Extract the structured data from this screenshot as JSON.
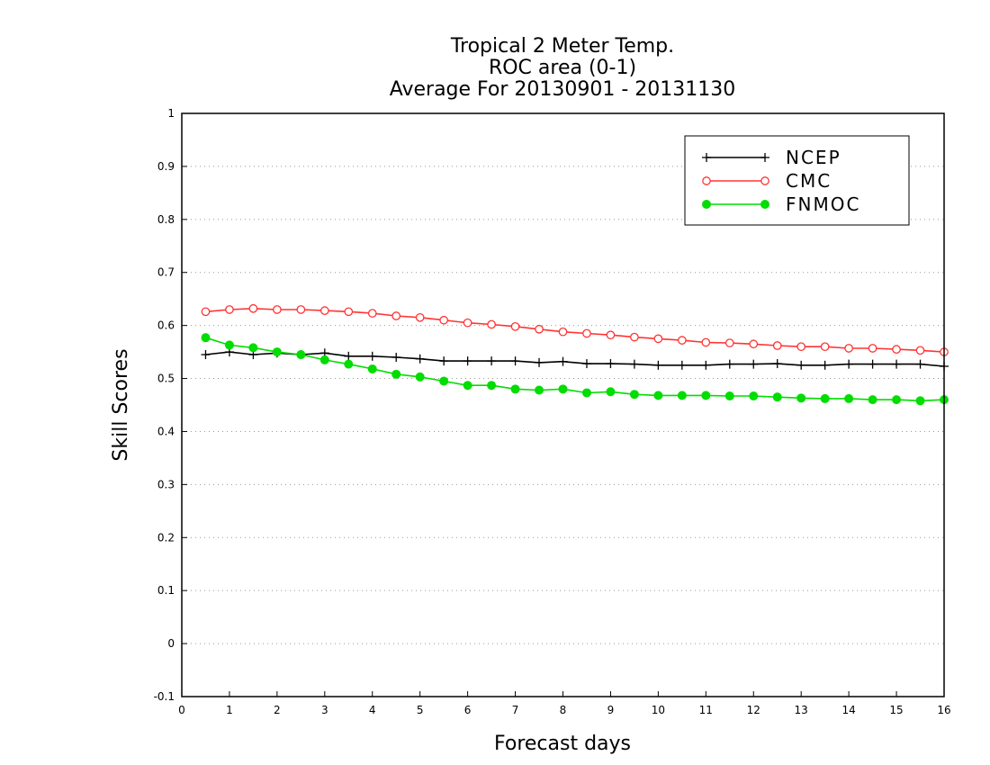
{
  "chart_data": {
    "type": "line",
    "title_lines": [
      "Tropical 2 Meter Temp.",
      "ROC area (0-1)",
      "Average For 20130901 - 20131130"
    ],
    "xlabel": "Forecast days",
    "ylabel": "Skill Scores",
    "xlim": [
      0,
      16
    ],
    "ylim": [
      -0.1,
      1
    ],
    "xticks": [
      "0",
      "1",
      "2",
      "3",
      "4",
      "5",
      "6",
      "7",
      "8",
      "9",
      "10",
      "11",
      "12",
      "13",
      "14",
      "15",
      "16"
    ],
    "yticks": [
      "-0.1",
      "0",
      "0.1",
      "0.2",
      "0.3",
      "0.4",
      "0.5",
      "0.6",
      "0.7",
      "0.8",
      "0.9",
      "1"
    ],
    "grid": "horizontal dotted",
    "legend_position": "top-right",
    "x": [
      0.5,
      1,
      1.5,
      2,
      2.5,
      3,
      3.5,
      4,
      4.5,
      5,
      5.5,
      6,
      6.5,
      7,
      7.5,
      8,
      8.5,
      9,
      9.5,
      10,
      10.5,
      11,
      11.5,
      12,
      12.5,
      13,
      13.5,
      14,
      14.5,
      15,
      15.5,
      16
    ],
    "series": [
      {
        "name": "NCEP",
        "color": "#000000",
        "marker": "plus",
        "values": [
          0.545,
          0.55,
          0.545,
          0.548,
          0.545,
          0.548,
          0.542,
          0.542,
          0.54,
          0.537,
          0.533,
          0.533,
          0.533,
          0.533,
          0.53,
          0.532,
          0.528,
          0.528,
          0.527,
          0.525,
          0.525,
          0.525,
          0.527,
          0.527,
          0.528,
          0.525,
          0.525,
          0.527,
          0.527,
          0.527,
          0.527,
          0.523
        ]
      },
      {
        "name": "CMC",
        "color": "#ff3333",
        "marker": "open-circle",
        "values": [
          0.626,
          0.63,
          0.632,
          0.63,
          0.63,
          0.628,
          0.626,
          0.623,
          0.618,
          0.615,
          0.61,
          0.605,
          0.602,
          0.598,
          0.593,
          0.588,
          0.585,
          0.582,
          0.578,
          0.575,
          0.572,
          0.568,
          0.567,
          0.565,
          0.562,
          0.56,
          0.56,
          0.557,
          0.557,
          0.555,
          0.553,
          0.55
        ]
      },
      {
        "name": "FNMOC",
        "color": "#00dd00",
        "marker": "filled-circle",
        "values": [
          0.577,
          0.563,
          0.558,
          0.55,
          0.545,
          0.535,
          0.527,
          0.518,
          0.508,
          0.503,
          0.495,
          0.487,
          0.487,
          0.48,
          0.478,
          0.48,
          0.473,
          0.475,
          0.47,
          0.468,
          0.468,
          0.468,
          0.467,
          0.467,
          0.465,
          0.463,
          0.462,
          0.462,
          0.46,
          0.46,
          0.458,
          0.46
        ]
      }
    ]
  }
}
